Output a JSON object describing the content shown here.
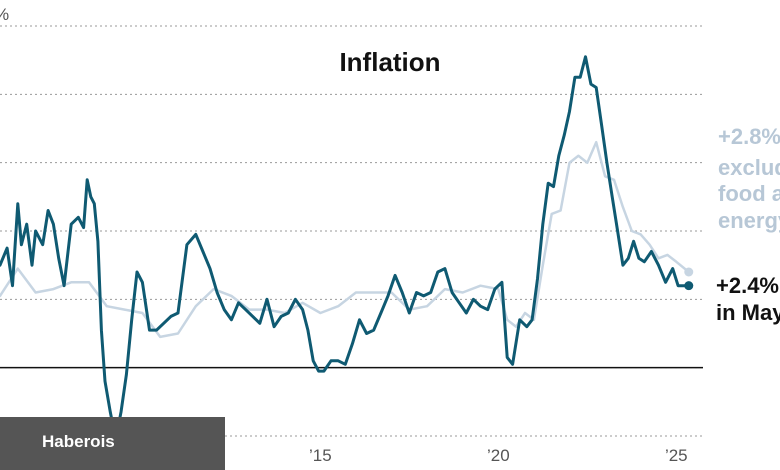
{
  "chart_data": {
    "type": "line",
    "title": "Inflation",
    "y_unit_label": "%",
    "ylim": [
      -2,
      10
    ],
    "y_gridlines": [
      -2,
      0,
      2,
      4,
      6,
      8,
      10
    ],
    "x_range": [
      2006.0,
      2025.75
    ],
    "x_ticks": [
      {
        "x": 2015,
        "label": "’15"
      },
      {
        "x": 2020,
        "label": "’20"
      },
      {
        "x": 2025,
        "label": "’25"
      }
    ],
    "zero_line": 0,
    "series": [
      {
        "key": "headline",
        "color": "#0f5a72",
        "x": [
          2006.0,
          2006.2,
          2006.35,
          2006.5,
          2006.6,
          2006.75,
          2006.9,
          2007.0,
          2007.2,
          2007.35,
          2007.5,
          2007.65,
          2007.8,
          2008.0,
          2008.2,
          2008.35,
          2008.45,
          2008.55,
          2008.65,
          2008.75,
          2008.85,
          2008.95,
          2009.1,
          2009.25,
          2009.4,
          2009.55,
          2009.7,
          2009.85,
          2010.0,
          2010.2,
          2010.4,
          2010.6,
          2010.8,
          2011.0,
          2011.25,
          2011.5,
          2011.7,
          2011.9,
          2012.1,
          2012.3,
          2012.5,
          2012.7,
          2012.9,
          2013.1,
          2013.3,
          2013.5,
          2013.7,
          2013.9,
          2014.1,
          2014.3,
          2014.5,
          2014.65,
          2014.8,
          2014.95,
          2015.1,
          2015.3,
          2015.5,
          2015.7,
          2015.9,
          2016.1,
          2016.3,
          2016.5,
          2016.7,
          2016.9,
          2017.1,
          2017.3,
          2017.5,
          2017.7,
          2017.9,
          2018.1,
          2018.3,
          2018.5,
          2018.7,
          2018.9,
          2019.1,
          2019.3,
          2019.5,
          2019.7,
          2019.9,
          2020.1,
          2020.25,
          2020.4,
          2020.6,
          2020.8,
          2020.95,
          2021.1,
          2021.25,
          2021.4,
          2021.55,
          2021.7,
          2021.85,
          2022.0,
          2022.15,
          2022.3,
          2022.45,
          2022.6,
          2022.75,
          2022.9,
          2023.05,
          2023.2,
          2023.35,
          2023.5,
          2023.65,
          2023.8,
          2023.95,
          2024.1,
          2024.3,
          2024.5,
          2024.7,
          2024.9,
          2025.05,
          2025.2,
          2025.35
        ],
        "y": [
          3.0,
          3.5,
          2.4,
          4.8,
          3.6,
          4.2,
          3.0,
          4.0,
          3.6,
          4.6,
          4.2,
          3.2,
          2.4,
          4.2,
          4.4,
          4.1,
          5.5,
          5.0,
          4.8,
          3.7,
          1.1,
          -0.4,
          -1.3,
          -2.1,
          -1.3,
          -0.2,
          1.4,
          2.8,
          2.5,
          1.1,
          1.1,
          1.3,
          1.5,
          1.6,
          3.6,
          3.9,
          3.4,
          2.9,
          2.2,
          1.7,
          1.4,
          1.9,
          1.7,
          1.5,
          1.3,
          2.0,
          1.2,
          1.5,
          1.6,
          2.0,
          1.7,
          1.1,
          0.2,
          -0.1,
          -0.1,
          0.2,
          0.2,
          0.1,
          0.7,
          1.4,
          1.0,
          1.1,
          1.6,
          2.1,
          2.7,
          2.2,
          1.6,
          2.2,
          2.1,
          2.2,
          2.8,
          2.9,
          2.2,
          1.9,
          1.6,
          2.0,
          1.8,
          1.7,
          2.3,
          2.5,
          0.3,
          0.1,
          1.4,
          1.2,
          1.4,
          2.6,
          4.2,
          5.4,
          5.3,
          6.2,
          6.8,
          7.5,
          8.5,
          8.5,
          9.1,
          8.3,
          8.2,
          7.1,
          6.0,
          5.0,
          4.0,
          3.0,
          3.2,
          3.7,
          3.2,
          3.1,
          3.4,
          3.0,
          2.5,
          2.9,
          2.4,
          2.4,
          2.4
        ]
      },
      {
        "key": "core",
        "color": "#c7d5e2",
        "x": [
          2006.0,
          2006.5,
          2007.0,
          2007.5,
          2008.0,
          2008.5,
          2009.0,
          2009.5,
          2010.0,
          2010.5,
          2011.0,
          2011.5,
          2012.0,
          2012.5,
          2013.0,
          2013.5,
          2014.0,
          2014.5,
          2015.0,
          2015.5,
          2016.0,
          2016.5,
          2017.0,
          2017.5,
          2018.0,
          2018.5,
          2019.0,
          2019.5,
          2020.0,
          2020.25,
          2020.5,
          2020.75,
          2021.0,
          2021.25,
          2021.5,
          2021.75,
          2022.0,
          2022.25,
          2022.5,
          2022.75,
          2023.0,
          2023.25,
          2023.5,
          2023.75,
          2024.0,
          2024.25,
          2024.5,
          2024.75,
          2025.0,
          2025.35
        ],
        "y": [
          2.1,
          2.9,
          2.2,
          2.3,
          2.5,
          2.5,
          1.8,
          1.7,
          1.6,
          0.9,
          1.0,
          1.8,
          2.3,
          2.1,
          1.7,
          1.7,
          1.6,
          1.9,
          1.6,
          1.8,
          2.2,
          2.2,
          2.2,
          1.7,
          1.8,
          2.3,
          2.2,
          2.4,
          2.3,
          1.4,
          1.2,
          1.6,
          1.4,
          3.0,
          4.5,
          4.6,
          6.0,
          6.2,
          6.0,
          6.6,
          5.6,
          5.5,
          4.7,
          4.0,
          3.9,
          3.6,
          3.2,
          3.3,
          3.1,
          2.8
        ]
      }
    ],
    "annotations": {
      "core_lines": [
        "+2.8%",
        "excluding",
        "food and",
        "energy"
      ],
      "headline_lines": [
        "+2.4%",
        "in May"
      ]
    }
  },
  "source_label": "Haberois"
}
